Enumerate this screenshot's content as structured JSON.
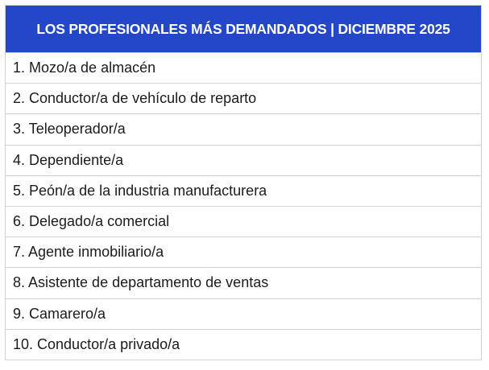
{
  "table": {
    "title": "LOS PROFESIONALES MÁS DEMANDADOS | DICIEMBRE 2025",
    "rows": [
      "1. Mozo/a de almacén",
      "2. Conductor/a de vehículo de reparto",
      "3. Teleoperador/a",
      "4. Dependiente/a",
      "5. Peón/a de la industria manufacturera",
      "6. Delegado/a comercial",
      "7. Agente inmobiliario/a",
      "8. Asistente de departamento de ventas",
      "9. Camarero/a",
      "10. Conductor/a privado/a"
    ]
  },
  "colors": {
    "header_bg": "#2347c8",
    "header_text": "#ffffff",
    "border": "#d4d4d4",
    "row_text": "#1c1c1c"
  }
}
